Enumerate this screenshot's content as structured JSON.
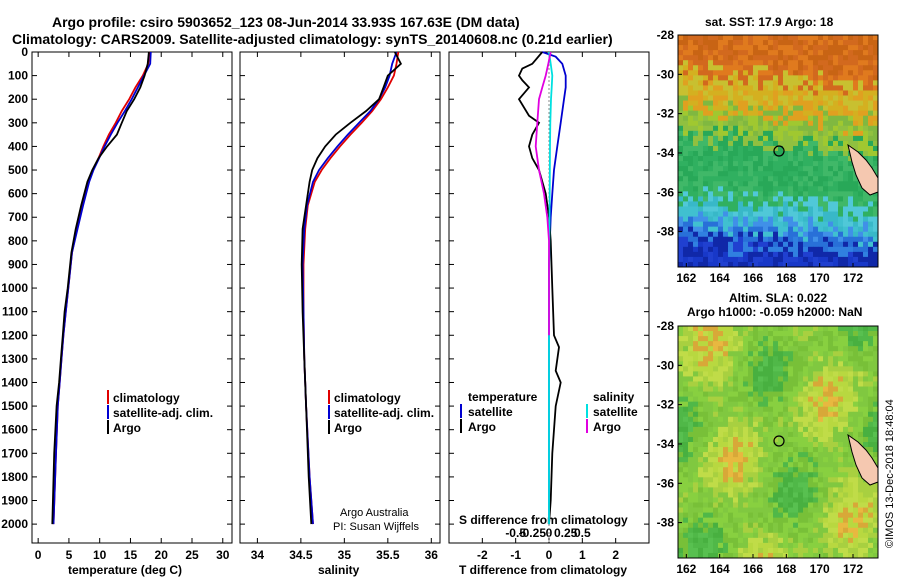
{
  "title": {
    "line1": "Argo profile: csiro 5903652_123 08-Jun-2014 33.93S 167.63E (DM data)",
    "line2": "Climatology: CARS2009. Satellite-adjusted climatology: synTS_20140608.nc (0.21d earlier)"
  },
  "colors": {
    "clim": "#e00000",
    "sat": "#0000d0",
    "argo": "#000000",
    "s_sat": "#00e0e0",
    "s_argo": "#e000e0"
  },
  "depth_ticks": [
    0,
    100,
    200,
    300,
    400,
    500,
    600,
    700,
    800,
    900,
    1000,
    1100,
    1200,
    1300,
    1400,
    1500,
    1600,
    1700,
    1800,
    1900,
    2000
  ],
  "chart_data": [
    {
      "type": "line",
      "name": "temperature",
      "xlabel": "temperature (deg C)",
      "ylabel": "depth",
      "xlim": [
        -1,
        31.5
      ],
      "ylim": [
        0,
        2080
      ],
      "xticks": [
        0,
        5,
        10,
        15,
        20,
        25,
        30
      ],
      "legend": [
        "climatology",
        "satellite-adj. clim.",
        "Argo"
      ],
      "series": [
        {
          "name": "climatology",
          "color": "#e00000",
          "x": [
            18.1,
            17.9,
            17.0,
            15.8,
            14.8,
            13.6,
            12.6,
            11.5,
            10.6,
            9.8,
            8.9,
            8.2,
            7.2,
            6.3,
            5.5,
            4.9,
            4.5,
            4.1,
            3.8,
            3.5,
            3.2,
            2.9,
            2.5
          ],
          "y": [
            0,
            50,
            100,
            150,
            200,
            250,
            300,
            350,
            400,
            450,
            500,
            550,
            650,
            750,
            850,
            1000,
            1100,
            1200,
            1300,
            1400,
            1500,
            1700,
            2000
          ]
        },
        {
          "name": "satellite-adj. clim.",
          "color": "#0000d0",
          "x": [
            18.3,
            18.2,
            17.2,
            16.2,
            15.2,
            14.1,
            12.9,
            11.8,
            10.8,
            9.9,
            9.0,
            8.3,
            7.3,
            6.4,
            5.5,
            4.9,
            4.5,
            4.1,
            3.8,
            3.5,
            3.2,
            2.9,
            2.5
          ],
          "y": [
            0,
            50,
            100,
            150,
            200,
            250,
            300,
            350,
            400,
            450,
            500,
            550,
            650,
            750,
            850,
            1000,
            1100,
            1200,
            1300,
            1400,
            1500,
            1700,
            2000
          ]
        },
        {
          "name": "Argo",
          "color": "#000000",
          "x": [
            18.0,
            17.8,
            17.3,
            16.6,
            15.6,
            14.4,
            13.6,
            12.8,
            11.2,
            9.8,
            8.8,
            8.0,
            7.0,
            6.1,
            5.4,
            4.8,
            4.3,
            4.0,
            3.7,
            3.4,
            3.0,
            2.6,
            2.3
          ],
          "y": [
            0,
            50,
            100,
            150,
            200,
            250,
            300,
            350,
            400,
            450,
            500,
            550,
            650,
            750,
            850,
            1000,
            1100,
            1200,
            1300,
            1400,
            1500,
            1700,
            2000
          ]
        }
      ]
    },
    {
      "type": "line",
      "name": "salinity",
      "xlabel": "salinity",
      "ylabel": "depth",
      "xlim": [
        33.8,
        36.1
      ],
      "ylim": [
        0,
        2080
      ],
      "xticks": [
        34,
        34.5,
        35,
        35.5,
        36
      ],
      "legend": [
        "climatology",
        "satellite-adj. clim.",
        "Argo"
      ],
      "annotation": [
        "Argo Australia",
        "PI: Susan Wijffels"
      ],
      "series": [
        {
          "name": "climatology",
          "color": "#e00000",
          "x": [
            35.62,
            35.6,
            35.57,
            35.5,
            35.42,
            35.32,
            35.2,
            35.07,
            34.95,
            34.84,
            34.74,
            34.66,
            34.58,
            34.55,
            34.53,
            34.53,
            34.54,
            34.56,
            34.6,
            34.64
          ],
          "y": [
            0,
            50,
            100,
            150,
            200,
            250,
            300,
            350,
            400,
            450,
            500,
            550,
            650,
            750,
            900,
            1100,
            1300,
            1500,
            1800,
            2000
          ]
        },
        {
          "name": "satellite-adj. clim.",
          "color": "#0000d0",
          "x": [
            35.6,
            35.55,
            35.52,
            35.47,
            35.4,
            35.3,
            35.17,
            35.04,
            34.92,
            34.81,
            34.71,
            34.64,
            34.57,
            34.54,
            34.52,
            34.53,
            34.54,
            34.56,
            34.6,
            34.64
          ],
          "y": [
            0,
            50,
            100,
            150,
            200,
            250,
            300,
            350,
            400,
            450,
            500,
            550,
            650,
            750,
            900,
            1100,
            1300,
            1500,
            1800,
            2000
          ]
        },
        {
          "name": "Argo",
          "color": "#000000",
          "x": [
            35.58,
            35.65,
            35.5,
            35.45,
            35.4,
            35.25,
            35.07,
            34.9,
            34.78,
            34.69,
            34.63,
            34.6,
            34.56,
            34.52,
            34.51,
            34.52,
            34.54,
            34.56,
            34.59,
            34.62
          ],
          "y": [
            0,
            50,
            100,
            150,
            200,
            250,
            300,
            350,
            400,
            450,
            500,
            550,
            650,
            750,
            900,
            1100,
            1300,
            1500,
            1800,
            2000
          ]
        }
      ]
    },
    {
      "type": "line",
      "name": "difference",
      "xlabel": "T difference from climatology",
      "xlabel_top": "S difference from climatology",
      "xticks": [
        -2,
        -1,
        0,
        1,
        2
      ],
      "xticks_top": [
        "-0.5",
        "-0.25",
        "0",
        "0.25",
        "0.5"
      ],
      "xlim": [
        -3,
        3
      ],
      "ylim": [
        0,
        2080
      ],
      "legend_left_title": "temperature",
      "legend_right_title": "salinity",
      "legend_left": [
        "satellite",
        "Argo"
      ],
      "legend_right": [
        "satellite",
        "Argo"
      ],
      "series": [
        {
          "name": "T satellite",
          "color": "#0000d0",
          "x": [
            -0.2,
            0.2,
            0.4,
            0.5,
            0.5,
            0.45,
            0.35,
            0.25,
            0.15,
            0.1,
            0.05,
            0.0,
            0.0,
            0.0
          ],
          "y": [
            0,
            20,
            50,
            100,
            150,
            200,
            300,
            400,
            500,
            600,
            700,
            900,
            1200,
            2000
          ]
        },
        {
          "name": "T Argo",
          "color": "#000000",
          "x": [
            -0.2,
            -0.5,
            -0.8,
            -0.9,
            -0.8,
            -0.6,
            -0.9,
            -0.6,
            -0.3,
            -0.5,
            -0.6,
            -0.5,
            -0.3,
            -0.1,
            0.0,
            0.05,
            0.1,
            0.15,
            0.3,
            0.2,
            0.35,
            0.2,
            0.1,
            0.05,
            0.0
          ],
          "y": [
            0,
            50,
            70,
            100,
            120,
            150,
            200,
            270,
            300,
            350,
            400,
            450,
            500,
            600,
            700,
            800,
            1000,
            1200,
            1250,
            1350,
            1400,
            1500,
            1700,
            1900,
            2000
          ]
        },
        {
          "name": "S satellite",
          "color": "#00e0e0",
          "x": [
            0.0,
            0.05,
            0.1,
            0.08,
            0.06,
            0.04,
            0.03,
            0.02,
            0.01,
            0.0,
            0.0,
            0.0
          ],
          "y": [
            0,
            50,
            100,
            150,
            200,
            300,
            400,
            600,
            800,
            1000,
            1500,
            2000
          ]
        },
        {
          "name": "S Argo",
          "color": "#e000e0",
          "x": [
            0.05,
            -0.02,
            -0.1,
            -0.2,
            -0.3,
            -0.35,
            -0.4,
            -0.3,
            -0.15,
            -0.05,
            0.0,
            0.0,
            0.0
          ],
          "y": [
            0,
            50,
            100,
            150,
            200,
            300,
            400,
            500,
            600,
            700,
            800,
            1000,
            1200
          ]
        }
      ]
    },
    {
      "type": "heatmap",
      "name": "sst_map",
      "title": "sat. SST: 17.9 Argo: 18",
      "xlim": [
        161.5,
        173.5
      ],
      "ylim": [
        -39.8,
        -28
      ],
      "xticks": [
        162,
        164,
        166,
        168,
        170,
        172
      ],
      "yticks": [
        -28,
        -30,
        -32,
        -34,
        -36,
        -38
      ],
      "marker": {
        "lon": 167.63,
        "lat": -33.93
      }
    },
    {
      "type": "heatmap",
      "name": "sla_map",
      "title": "Altim. SLA: 0.022",
      "subtitle": "Argo h1000: -0.059 h2000: NaN",
      "xlim": [
        161.5,
        173.5
      ],
      "ylim": [
        -39.8,
        -28
      ],
      "xticks": [
        162,
        164,
        166,
        168,
        170,
        172
      ],
      "yticks": [
        -28,
        -30,
        -32,
        -34,
        -36,
        -38
      ],
      "marker": {
        "lon": 167.63,
        "lat": -33.93
      }
    }
  ],
  "credit": "©IMOS 13-Dec-2018 18:48:04"
}
